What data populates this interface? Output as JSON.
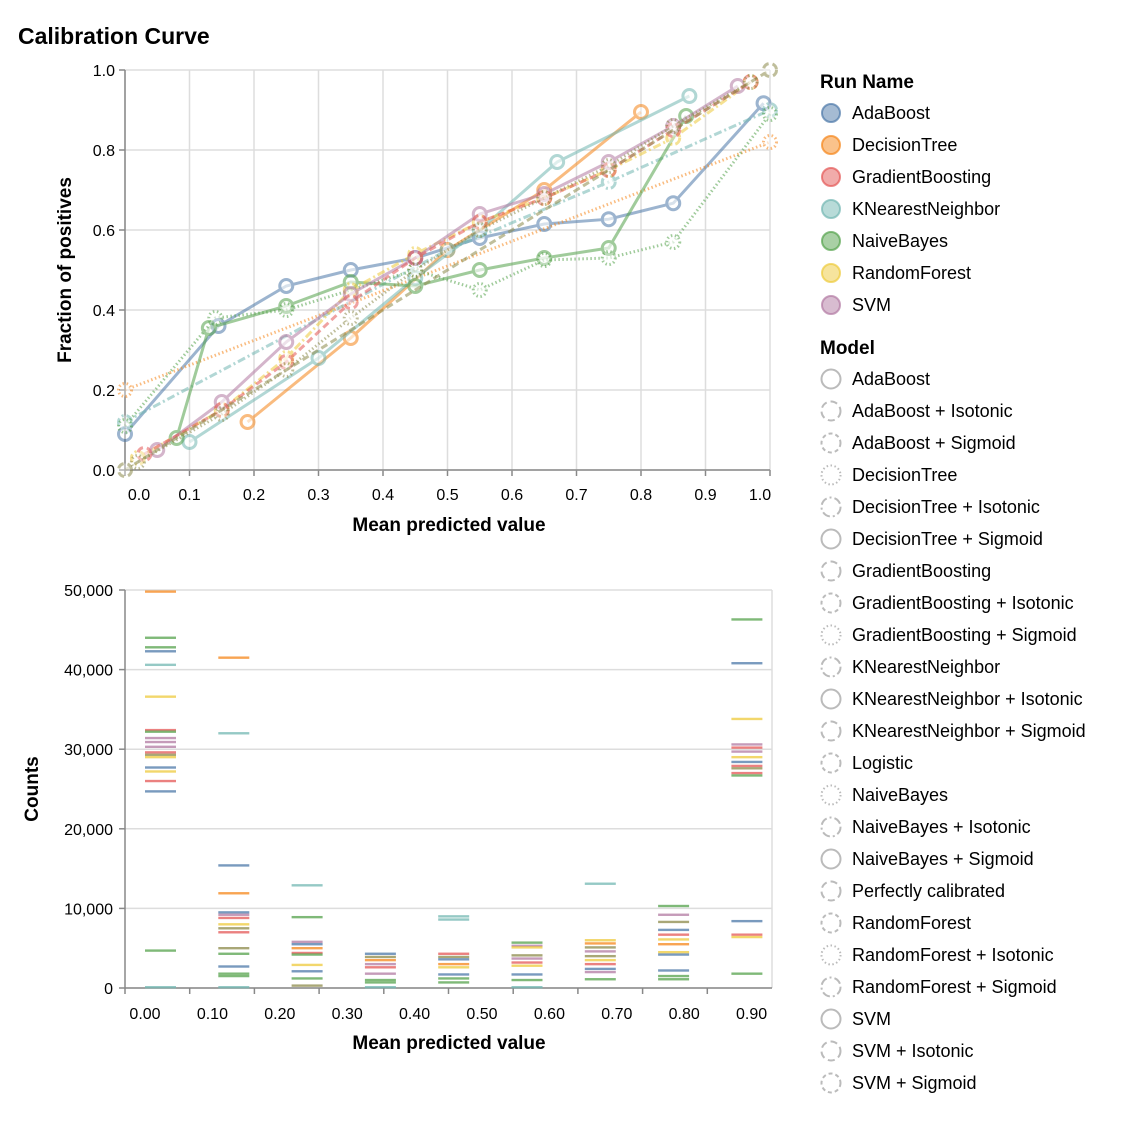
{
  "colors": {
    "blue": "#4c78a8",
    "orange": "#f58518",
    "red": "#e45756",
    "teal": "#72b7b2",
    "green": "#54a24b",
    "yellow": "#eeca3b",
    "purple": "#b279a2",
    "olive": "#8c8a4a"
  },
  "dash_styles": [
    "solid",
    "dashed",
    "short-dashed",
    "dotted",
    "dash-dot"
  ],
  "chart_data": [
    {
      "type": "line",
      "title": "Calibration Curve",
      "xlabel": "Mean predicted value",
      "ylabel": "Fraction of positives",
      "xlim": [
        0,
        1
      ],
      "ylim": [
        0,
        1
      ],
      "xticks": [
        "0.0",
        "0.1",
        "0.2",
        "0.3",
        "0.4",
        "0.5",
        "0.6",
        "0.7",
        "0.8",
        "0.9",
        "1.0"
      ],
      "yticks": [
        "0.0",
        "0.2",
        "0.4",
        "0.6",
        "0.8",
        "1.0"
      ],
      "grid": true,
      "legend_placement": "right",
      "series": [
        {
          "run": "AdaBoost",
          "model": "AdaBoost",
          "color": "blue",
          "points": [
            [
              0.0,
              0.09
            ],
            [
              0.145,
              0.36
            ],
            [
              0.25,
              0.46
            ],
            [
              0.35,
              0.5
            ],
            [
              0.45,
              0.53
            ],
            [
              0.55,
              0.58
            ],
            [
              0.65,
              0.615
            ],
            [
              0.75,
              0.627
            ],
            [
              0.85,
              0.667
            ],
            [
              0.99,
              0.917
            ]
          ]
        },
        {
          "run": "DecisionTree",
          "model": "DecisionTree + Sigmoid",
          "color": "orange",
          "points": [
            [
              0.19,
              0.12
            ],
            [
              0.35,
              0.33
            ],
            [
              0.5,
              0.55
            ],
            [
              0.65,
              0.7
            ],
            [
              0.8,
              0.895
            ]
          ]
        },
        {
          "run": "DecisionTree",
          "model": "DecisionTree",
          "color": "orange",
          "points": [
            [
              0.0,
              0.2
            ],
            [
              1.0,
              0.82
            ]
          ]
        },
        {
          "run": "KNearestNeighbor",
          "model": "KNearestNeighbor + Isotonic",
          "color": "teal",
          "points": [
            [
              0.1,
              0.07
            ],
            [
              0.3,
              0.28
            ],
            [
              0.45,
              0.48
            ],
            [
              0.55,
              0.6
            ],
            [
              0.67,
              0.77
            ],
            [
              0.875,
              0.935
            ]
          ]
        },
        {
          "run": "KNearestNeighbor",
          "model": "KNearestNeighbor",
          "color": "teal",
          "points": [
            [
              0.0,
              0.12
            ],
            [
              0.5,
              0.55
            ],
            [
              0.75,
              0.72
            ],
            [
              1.0,
              0.9
            ]
          ]
        },
        {
          "run": "NaiveBayes",
          "model": "NaiveBayes + Sigmoid",
          "color": "green",
          "points": [
            [
              0.08,
              0.08
            ],
            [
              0.13,
              0.355
            ],
            [
              0.25,
              0.41
            ],
            [
              0.35,
              0.47
            ],
            [
              0.45,
              0.46
            ],
            [
              0.55,
              0.5
            ],
            [
              0.65,
              0.53
            ],
            [
              0.75,
              0.555
            ],
            [
              0.87,
              0.885
            ]
          ]
        },
        {
          "run": "NaiveBayes",
          "model": "NaiveBayes",
          "color": "green",
          "points": [
            [
              0.0,
              0.11
            ],
            [
              0.14,
              0.38
            ],
            [
              0.25,
              0.4
            ],
            [
              0.45,
              0.5
            ],
            [
              0.55,
              0.45
            ],
            [
              0.65,
              0.525
            ],
            [
              0.75,
              0.53
            ],
            [
              0.85,
              0.57
            ],
            [
              1.0,
              0.89
            ]
          ]
        },
        {
          "run": "RandomForest",
          "model": "RandomForest + Sigmoid",
          "color": "yellow",
          "points": [
            [
              0.02,
              0.03
            ],
            [
              0.15,
              0.15
            ],
            [
              0.25,
              0.28
            ],
            [
              0.35,
              0.45
            ],
            [
              0.45,
              0.54
            ],
            [
              0.55,
              0.62
            ],
            [
              0.65,
              0.68
            ],
            [
              0.75,
              0.75
            ],
            [
              0.85,
              0.83
            ],
            [
              0.97,
              0.97
            ]
          ]
        },
        {
          "run": "SVM",
          "model": "SVM",
          "color": "purple",
          "points": [
            [
              0.05,
              0.05
            ],
            [
              0.15,
              0.17
            ],
            [
              0.25,
              0.32
            ],
            [
              0.35,
              0.44
            ],
            [
              0.45,
              0.53
            ],
            [
              0.55,
              0.64
            ],
            [
              0.65,
              0.69
            ],
            [
              0.75,
              0.77
            ],
            [
              0.85,
              0.86
            ],
            [
              0.95,
              0.96
            ]
          ]
        },
        {
          "run": "GradientBoosting",
          "model": "GradientBoosting",
          "color": "red",
          "points": [
            [
              0.03,
              0.04
            ],
            [
              0.15,
              0.15
            ],
            [
              0.25,
              0.27
            ],
            [
              0.35,
              0.42
            ],
            [
              0.45,
              0.53
            ],
            [
              0.55,
              0.62
            ],
            [
              0.65,
              0.68
            ],
            [
              0.75,
              0.75
            ],
            [
              0.85,
              0.85
            ],
            [
              0.97,
              0.97
            ]
          ]
        },
        {
          "run": "RandomForest",
          "model": "RandomForest + Isotonic",
          "color": "olive",
          "points": [
            [
              0.02,
              0.02
            ],
            [
              0.15,
              0.14
            ],
            [
              0.25,
              0.25
            ],
            [
              0.35,
              0.38
            ],
            [
              0.45,
              0.5
            ],
            [
              0.55,
              0.6
            ],
            [
              0.65,
              0.68
            ],
            [
              0.75,
              0.76
            ],
            [
              0.85,
              0.86
            ],
            [
              0.97,
              0.97
            ]
          ]
        },
        {
          "run": "",
          "model": "Perfectly calibrated",
          "color": "olive",
          "points": [
            [
              0.0,
              0.0
            ],
            [
              1.0,
              1.0
            ]
          ]
        }
      ]
    },
    {
      "type": "bar",
      "xlabel": "Mean predicted value",
      "ylabel": "Counts",
      "ylim": [
        0,
        50000
      ],
      "xticks": [
        "0.00",
        "0.10",
        "0.20",
        "0.30",
        "0.40",
        "0.50",
        "0.60",
        "0.70",
        "0.80",
        "0.90"
      ],
      "yticks": [
        "0",
        "10,000",
        "20,000",
        "30,000",
        "40,000",
        "50,000"
      ],
      "grid": true,
      "bins": [
        [
          [
            49800,
            "orange"
          ],
          [
            44000,
            "green"
          ],
          [
            42800,
            "green"
          ],
          [
            42300,
            "blue"
          ],
          [
            40600,
            "teal"
          ],
          [
            36600,
            "yellow"
          ],
          [
            32400,
            "red"
          ],
          [
            32200,
            "green"
          ],
          [
            31400,
            "purple"
          ],
          [
            30900,
            "purple"
          ],
          [
            30300,
            "purple"
          ],
          [
            29600,
            "red"
          ],
          [
            29300,
            "olive"
          ],
          [
            29000,
            "yellow"
          ],
          [
            27700,
            "blue"
          ],
          [
            27200,
            "yellow"
          ],
          [
            26000,
            "red"
          ],
          [
            24700,
            "blue"
          ],
          [
            4700,
            "green"
          ],
          [
            100,
            "teal"
          ]
        ],
        [
          [
            41500,
            "orange"
          ],
          [
            32000,
            "teal"
          ],
          [
            15400,
            "blue"
          ],
          [
            11900,
            "orange"
          ],
          [
            9500,
            "blue"
          ],
          [
            9200,
            "purple"
          ],
          [
            8800,
            "red"
          ],
          [
            8000,
            "yellow"
          ],
          [
            7500,
            "olive"
          ],
          [
            7000,
            "red"
          ],
          [
            5000,
            "olive"
          ],
          [
            4300,
            "green"
          ],
          [
            2700,
            "blue"
          ],
          [
            1800,
            "green"
          ],
          [
            1500,
            "green"
          ],
          [
            100,
            "teal"
          ]
        ],
        [
          [
            12900,
            "teal"
          ],
          [
            8900,
            "green"
          ],
          [
            5800,
            "purple"
          ],
          [
            5500,
            "blue"
          ],
          [
            5000,
            "orange"
          ],
          [
            4400,
            "red"
          ],
          [
            4200,
            "green"
          ],
          [
            2900,
            "yellow"
          ],
          [
            2100,
            "blue"
          ],
          [
            1200,
            "green"
          ],
          [
            300,
            "olive"
          ]
        ],
        [
          [
            4300,
            "blue"
          ],
          [
            3900,
            "olive"
          ],
          [
            3500,
            "orange"
          ],
          [
            3000,
            "purple"
          ],
          [
            2600,
            "red"
          ],
          [
            1800,
            "purple"
          ],
          [
            1000,
            "green"
          ],
          [
            700,
            "green"
          ],
          [
            100,
            "teal"
          ]
        ],
        [
          [
            9000,
            "teal"
          ],
          [
            8600,
            "teal"
          ],
          [
            4300,
            "red"
          ],
          [
            3900,
            "olive"
          ],
          [
            3600,
            "blue"
          ],
          [
            3000,
            "orange"
          ],
          [
            2600,
            "yellow"
          ],
          [
            1700,
            "blue"
          ],
          [
            1200,
            "green"
          ],
          [
            700,
            "green"
          ]
        ],
        [
          [
            5700,
            "green"
          ],
          [
            5300,
            "purple"
          ],
          [
            5100,
            "yellow"
          ],
          [
            4100,
            "olive"
          ],
          [
            3700,
            "purple"
          ],
          [
            3200,
            "red"
          ],
          [
            2800,
            "yellow"
          ],
          [
            1700,
            "blue"
          ],
          [
            1000,
            "green"
          ],
          [
            100,
            "teal"
          ]
        ],
        [
          [
            13100,
            "teal"
          ],
          [
            6000,
            "yellow"
          ],
          [
            5600,
            "orange"
          ],
          [
            5100,
            "olive"
          ],
          [
            4600,
            "purple"
          ],
          [
            4000,
            "olive"
          ],
          [
            3500,
            "yellow"
          ],
          [
            3000,
            "red"
          ],
          [
            2400,
            "blue"
          ],
          [
            2000,
            "purple"
          ],
          [
            1100,
            "green"
          ]
        ],
        [
          [
            10300,
            "green"
          ],
          [
            9200,
            "purple"
          ],
          [
            8300,
            "olive"
          ],
          [
            7300,
            "blue"
          ],
          [
            6700,
            "red"
          ],
          [
            6100,
            "yellow"
          ],
          [
            5500,
            "orange"
          ],
          [
            4500,
            "yellow"
          ],
          [
            4200,
            "blue"
          ],
          [
            2200,
            "blue"
          ],
          [
            1500,
            "green"
          ],
          [
            1100,
            "green"
          ]
        ],
        [
          [
            46300,
            "green"
          ],
          [
            40800,
            "blue"
          ],
          [
            33800,
            "yellow"
          ],
          [
            30600,
            "purple"
          ],
          [
            30200,
            "red"
          ],
          [
            29700,
            "purple"
          ],
          [
            29000,
            "yellow"
          ],
          [
            28400,
            "blue"
          ],
          [
            27900,
            "red"
          ],
          [
            27600,
            "olive"
          ],
          [
            27000,
            "red"
          ],
          [
            26700,
            "green"
          ],
          [
            8400,
            "blue"
          ],
          [
            6700,
            "red"
          ],
          [
            6400,
            "yellow"
          ],
          [
            1800,
            "green"
          ]
        ]
      ]
    }
  ],
  "legend": {
    "run_title": "Run Name",
    "runs": [
      {
        "label": "AdaBoost",
        "color": "blue"
      },
      {
        "label": "DecisionTree",
        "color": "orange"
      },
      {
        "label": "GradientBoosting",
        "color": "red"
      },
      {
        "label": "KNearestNeighbor",
        "color": "teal"
      },
      {
        "label": "NaiveBayes",
        "color": "green"
      },
      {
        "label": "RandomForest",
        "color": "yellow"
      },
      {
        "label": "SVM",
        "color": "purple"
      }
    ],
    "model_title": "Model",
    "models": [
      "AdaBoost",
      "AdaBoost + Isotonic",
      "AdaBoost + Sigmoid",
      "DecisionTree",
      "DecisionTree + Isotonic",
      "DecisionTree + Sigmoid",
      "GradientBoosting",
      "GradientBoosting + Isotonic",
      "GradientBoosting + Sigmoid",
      "KNearestNeighbor",
      "KNearestNeighbor + Isotonic",
      "KNearestNeighbor + Sigmoid",
      "Logistic",
      "NaiveBayes",
      "NaiveBayes + Isotonic",
      "NaiveBayes + Sigmoid",
      "Perfectly calibrated",
      "RandomForest",
      "RandomForest + Isotonic",
      "RandomForest + Sigmoid",
      "SVM",
      "SVM + Isotonic",
      "SVM + Sigmoid"
    ]
  }
}
